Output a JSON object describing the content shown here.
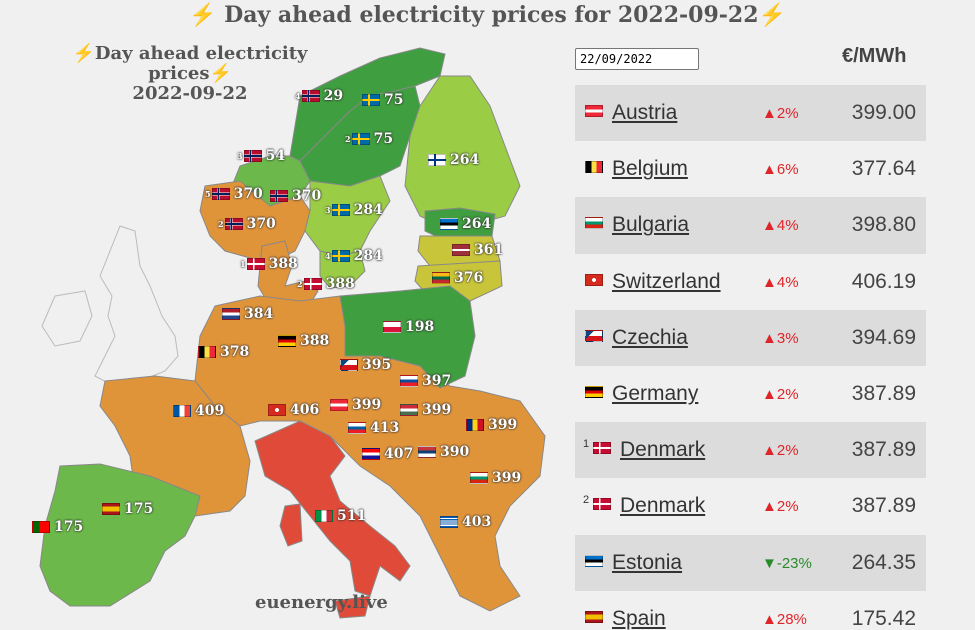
{
  "header": {
    "title": "Day ahead electricity prices for 2022-09-22",
    "bolt": "⚡"
  },
  "map": {
    "title_line1": "Day ahead electricity prices",
    "title_line2": "2022-09-22",
    "footer": "euenergy.live",
    "colors": {
      "green_dark": "#3f9e3f",
      "green_mid": "#6cb84a",
      "green_light": "#9acd45",
      "yellow": "#c9c53a",
      "orange": "#e0943a",
      "red": "#e04a38",
      "neutral": "#f0f0f0"
    },
    "labels": [
      {
        "sup": "4",
        "flag": "norway",
        "value": "29"
      },
      {
        "sup": "",
        "flag": "sweden",
        "value": "75"
      },
      {
        "sup": "2",
        "flag": "sweden",
        "value": "75"
      },
      {
        "sup": "3",
        "flag": "norway",
        "value": "54"
      },
      {
        "sup": "",
        "flag": "finland",
        "value": "264"
      },
      {
        "sup": "5",
        "flag": "norway",
        "value": "370"
      },
      {
        "sup": "",
        "flag": "norway",
        "value": "370"
      },
      {
        "sup": "3",
        "flag": "sweden",
        "value": "284"
      },
      {
        "sup": "2",
        "flag": "norway",
        "value": "370"
      },
      {
        "sup": "",
        "flag": "estonia",
        "value": "264"
      },
      {
        "sup": "",
        "flag": "latvia",
        "value": "361"
      },
      {
        "sup": "1",
        "flag": "denmark",
        "value": "388"
      },
      {
        "sup": "4",
        "flag": "sweden",
        "value": "284"
      },
      {
        "sup": "2",
        "flag": "denmark",
        "value": "388"
      },
      {
        "sup": "",
        "flag": "lithuania",
        "value": "376"
      },
      {
        "sup": "",
        "flag": "netherlands",
        "value": "384"
      },
      {
        "sup": "",
        "flag": "poland",
        "value": "198"
      },
      {
        "sup": "",
        "flag": "germany",
        "value": "388"
      },
      {
        "sup": "",
        "flag": "belgium",
        "value": "378"
      },
      {
        "sup": "",
        "flag": "czechia",
        "value": "395"
      },
      {
        "sup": "",
        "flag": "slovakia",
        "value": "397"
      },
      {
        "sup": "",
        "flag": "france",
        "value": "409"
      },
      {
        "sup": "",
        "flag": "switzerland",
        "value": "406"
      },
      {
        "sup": "",
        "flag": "austria",
        "value": "399"
      },
      {
        "sup": "",
        "flag": "hungary",
        "value": "399"
      },
      {
        "sup": "",
        "flag": "romania",
        "value": "399"
      },
      {
        "sup": "",
        "flag": "slovenia",
        "value": "413"
      },
      {
        "sup": "",
        "flag": "croatia",
        "value": "407"
      },
      {
        "sup": "",
        "flag": "serbia",
        "value": "390"
      },
      {
        "sup": "",
        "flag": "bulgaria",
        "value": "399"
      },
      {
        "sup": "",
        "flag": "italy",
        "value": "511"
      },
      {
        "sup": "",
        "flag": "spain",
        "value": "175"
      },
      {
        "sup": "",
        "flag": "portugal",
        "value": "175"
      },
      {
        "sup": "",
        "flag": "greece",
        "value": "403"
      }
    ]
  },
  "controls": {
    "date_value": "2022-09-22",
    "date_display": "22/09/2022",
    "unit": "€/MWh"
  },
  "table": {
    "rows": [
      {
        "sup": "",
        "flag": "austria",
        "country": "Austria",
        "change": "▲2%",
        "direction": "up",
        "price": "399.00"
      },
      {
        "sup": "",
        "flag": "belgium",
        "country": "Belgium",
        "change": "▲6%",
        "direction": "up",
        "price": "377.64"
      },
      {
        "sup": "",
        "flag": "bulgaria",
        "country": "Bulgaria",
        "change": "▲4%",
        "direction": "up",
        "price": "398.80"
      },
      {
        "sup": "",
        "flag": "switzerland",
        "country": "Switzerland",
        "change": "▲4%",
        "direction": "up",
        "price": "406.19"
      },
      {
        "sup": "",
        "flag": "czechia",
        "country": "Czechia",
        "change": "▲3%",
        "direction": "up",
        "price": "394.69"
      },
      {
        "sup": "",
        "flag": "germany",
        "country": "Germany",
        "change": "▲2%",
        "direction": "up",
        "price": "387.89"
      },
      {
        "sup": "1",
        "flag": "denmark",
        "country": "Denmark",
        "change": "▲2%",
        "direction": "up",
        "price": "387.89"
      },
      {
        "sup": "2",
        "flag": "denmark",
        "country": "Denmark",
        "change": "▲2%",
        "direction": "up",
        "price": "387.89"
      },
      {
        "sup": "",
        "flag": "estonia",
        "country": "Estonia",
        "change": "▼-23%",
        "direction": "down",
        "price": "264.35"
      },
      {
        "sup": "",
        "flag": "spain",
        "country": "Spain",
        "change": "▲28%",
        "direction": "up",
        "price": "175.42"
      }
    ]
  }
}
